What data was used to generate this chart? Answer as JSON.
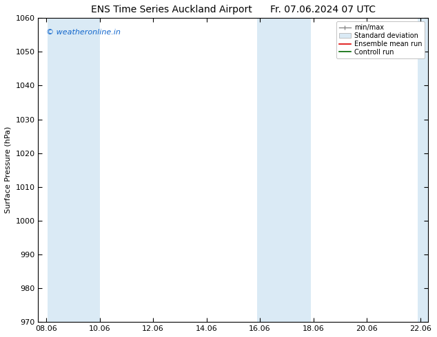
{
  "title": "ENS Time Series Auckland Airport      Fr. 07.06.2024 07 UTC",
  "ylabel": "Surface Pressure (hPa)",
  "ylim": [
    970,
    1060
  ],
  "yticks": [
    970,
    980,
    990,
    1000,
    1010,
    1020,
    1030,
    1040,
    1050,
    1060
  ],
  "xtick_labels": [
    "08.06",
    "10.06",
    "12.06",
    "14.06",
    "16.06",
    "18.06",
    "20.06",
    "22.06"
  ],
  "xtick_positions": [
    0,
    2,
    4,
    6,
    8,
    10,
    12,
    14
  ],
  "xlim": [
    -0.3,
    14.3
  ],
  "shaded_bands": [
    {
      "x_start": 0.05,
      "x_end": 1.0,
      "color": "#daeaf5"
    },
    {
      "x_start": 1.0,
      "x_end": 2.0,
      "color": "#daeaf5"
    },
    {
      "x_start": 7.9,
      "x_end": 8.9,
      "color": "#daeaf5"
    },
    {
      "x_start": 8.9,
      "x_end": 9.9,
      "color": "#daeaf5"
    },
    {
      "x_start": 13.9,
      "x_end": 14.3,
      "color": "#daeaf5"
    }
  ],
  "watermark_text": "© weatheronline.in",
  "watermark_color": "#1166cc",
  "legend_labels": [
    "min/max",
    "Standard deviation",
    "Ensemble mean run",
    "Controll run"
  ],
  "background_color": "#ffffff",
  "plot_bg_color": "#ffffff",
  "font_color": "#000000",
  "title_fontsize": 10,
  "axis_fontsize": 8,
  "tick_fontsize": 8
}
